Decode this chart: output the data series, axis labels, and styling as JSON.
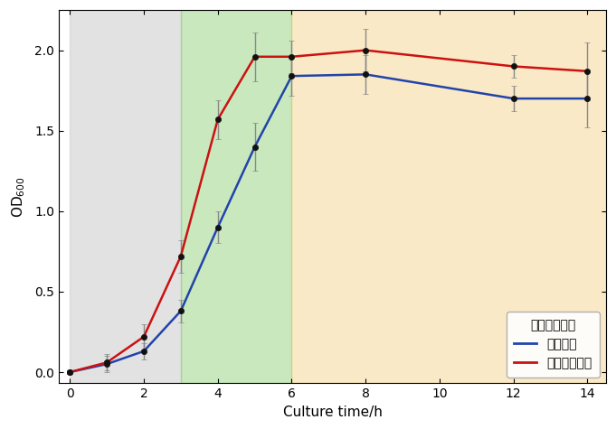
{
  "blue_x": [
    0,
    1,
    2,
    3,
    4,
    5,
    6,
    8,
    12,
    14
  ],
  "blue_y": [
    0.0,
    0.05,
    0.13,
    0.38,
    0.9,
    1.4,
    1.84,
    1.85,
    1.7,
    1.7
  ],
  "blue_err": [
    0.01,
    0.05,
    0.05,
    0.07,
    0.1,
    0.15,
    0.12,
    0.12,
    0.08,
    0.18
  ],
  "red_x": [
    0,
    1,
    2,
    3,
    4,
    5,
    6,
    8,
    12,
    14
  ],
  "red_y": [
    0.0,
    0.06,
    0.22,
    0.72,
    1.57,
    1.96,
    1.96,
    2.0,
    1.9,
    1.87
  ],
  "red_err": [
    0.01,
    0.05,
    0.08,
    0.1,
    0.12,
    0.15,
    0.1,
    0.13,
    0.07,
    0.18
  ],
  "blue_color": "#2244aa",
  "red_color": "#cc1111",
  "marker_color": "#111111",
  "error_color": "#888888",
  "bg_gray_xmin": 0.0,
  "bg_gray_xmax": 3.0,
  "bg_gray_color": "#d0d0d0",
  "bg_gray_alpha": 0.6,
  "bg_green_xmin": 3.0,
  "bg_green_xmax": 6.0,
  "bg_green_color": "#88cc70",
  "bg_green_alpha": 0.45,
  "bg_yellow_xmin": 6.0,
  "bg_yellow_xmax": 14.5,
  "bg_yellow_color": "#f0c060",
  "bg_yellow_alpha": 0.35,
  "xlabel": "Culture time/h",
  "xlim": [
    -0.3,
    14.5
  ],
  "ylim": [
    -0.07,
    2.25
  ],
  "xticks": [
    0,
    2,
    4,
    6,
    8,
    10,
    12,
    14
  ],
  "yticks": [
    0.0,
    0.5,
    1.0,
    1.5,
    2.0
  ],
  "legend_title": "单细胞微生物",
  "legend_blue": "大肠杆菌",
  "legend_red": "枯草芽孢杆菌",
  "fig_width": 6.81,
  "fig_height": 4.75,
  "dpi": 100
}
